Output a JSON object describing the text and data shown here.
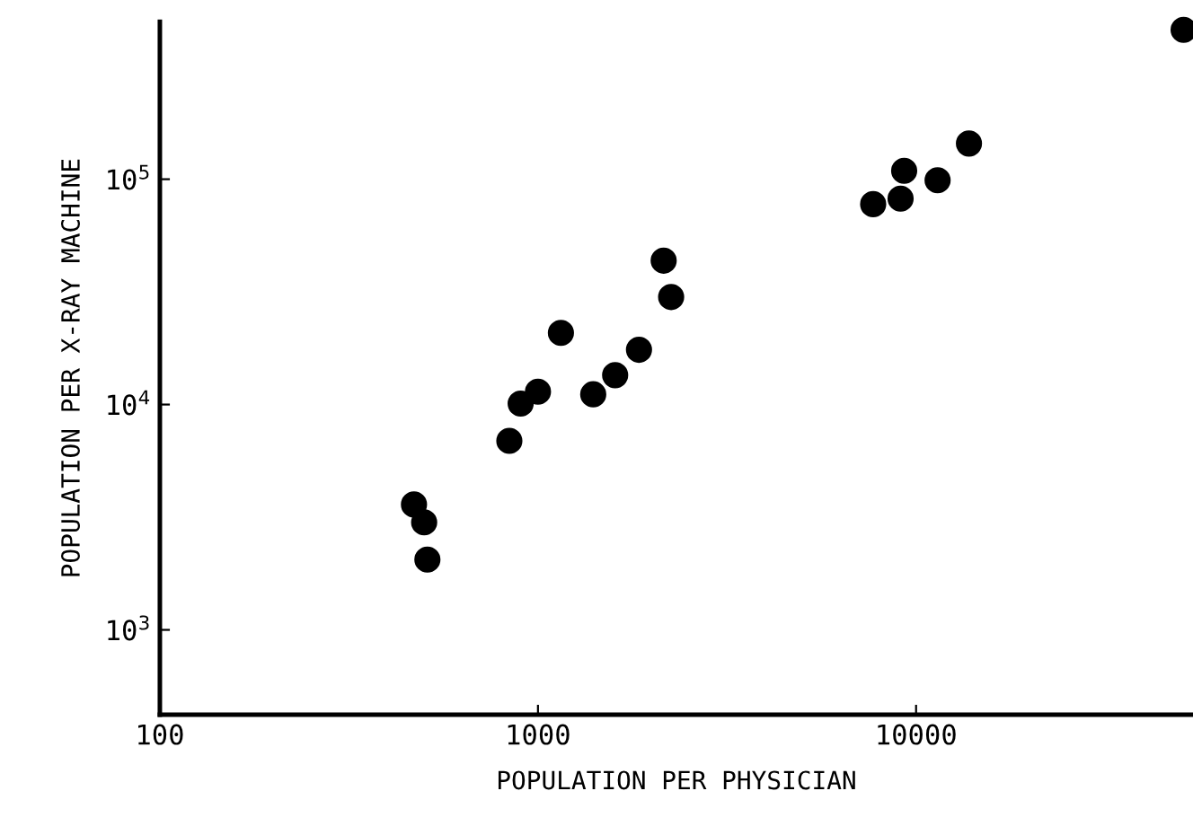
{
  "chart_data": {
    "type": "scatter",
    "xlabel": "POPULATION PER PHYSICIAN",
    "ylabel": "POPULATION PER X-RAY MACHINE",
    "log": "xy",
    "marker": "circle",
    "grid": false,
    "xlim": [
      100,
      54000
    ],
    "ylim": [
      420,
      500000
    ],
    "xticks": [
      100,
      1000,
      10000
    ],
    "yticks": [
      {
        "value": 1000,
        "label": "10$^{3}$"
      },
      {
        "value": 10000,
        "label": "10$^{4}$"
      },
      {
        "value": 100000,
        "label": "10$^{5}$"
      }
    ],
    "series": [
      {
        "color": "#000000",
        "x": [
          470,
          500,
          510,
          840,
          900,
          1000,
          1150,
          1400,
          1600,
          1850,
          2150,
          2250,
          7700,
          9100,
          9300,
          11400,
          13800,
          51000
        ],
        "values": [
          3600,
          3000,
          2050,
          6900,
          10100,
          11400,
          20800,
          11100,
          13500,
          17500,
          43500,
          30000,
          77500,
          82000,
          109000,
          99000,
          144000,
          460000
        ]
      }
    ]
  }
}
